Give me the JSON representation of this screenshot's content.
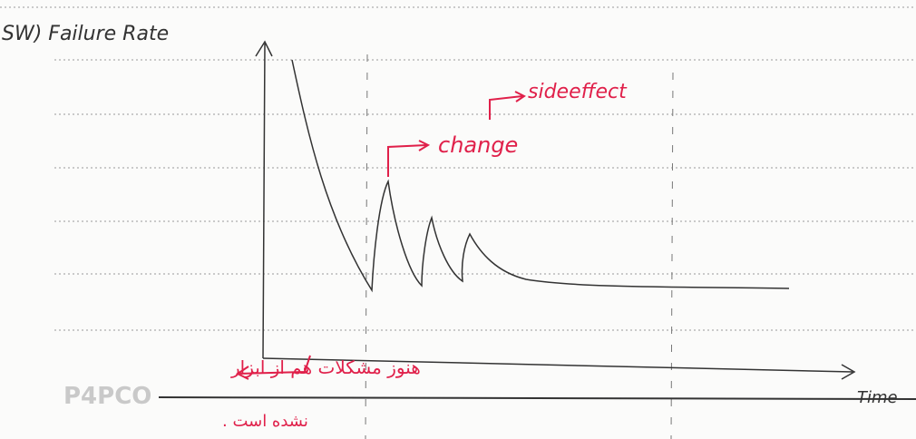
{
  "header": {
    "title": "SW) Failure Rate"
  },
  "annotations": {
    "change": "change",
    "side_effect": "sideeffect",
    "x_axis": "Time",
    "note_line1": "هنوز مشکلات هم از ابزار",
    "note_line2": "نشده است ."
  },
  "watermark": "P4PCO"
}
